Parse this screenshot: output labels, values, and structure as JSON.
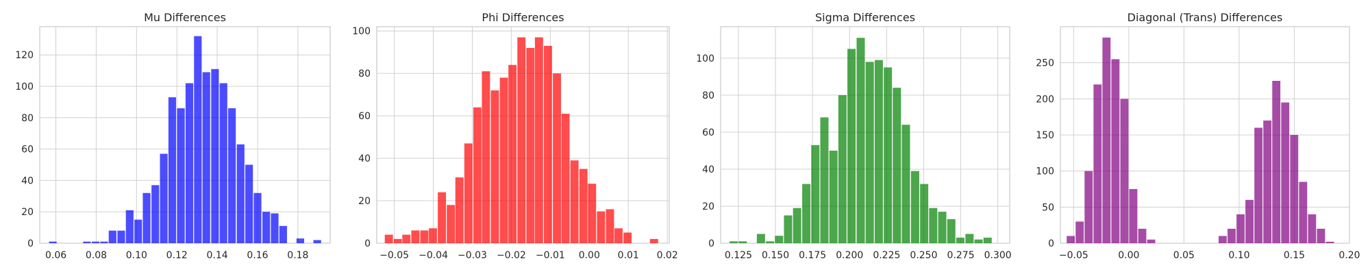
{
  "figure": {
    "background": "#ffffff",
    "grid_color": "#d0d0d0"
  },
  "chart_data": [
    {
      "type": "bar",
      "title": "Mu Differences",
      "color": "#0000ff",
      "bin_width": 0.0042,
      "x": [
        0.0585,
        0.0628,
        0.067,
        0.0712,
        0.0754,
        0.0797,
        0.0839,
        0.0881,
        0.0924,
        0.0966,
        0.1008,
        0.105,
        0.1093,
        0.1135,
        0.1177,
        0.122,
        0.1262,
        0.1304,
        0.1346,
        0.1389,
        0.1431,
        0.1473,
        0.1516,
        0.1558,
        0.16,
        0.1643,
        0.1685,
        0.1727,
        0.1769,
        0.1812,
        0.1854,
        0.1896
      ],
      "values": [
        1,
        0,
        0,
        0,
        1,
        1,
        1,
        8,
        8,
        21,
        15,
        32,
        37,
        57,
        93,
        86,
        102,
        132,
        109,
        111,
        102,
        86,
        63,
        50,
        32,
        20,
        19,
        11,
        0,
        3,
        0,
        2
      ],
      "xlim": [
        0.052,
        0.196
      ],
      "ylim": [
        0,
        138
      ],
      "xticks": [
        0.06,
        0.08,
        0.1,
        0.12,
        0.14,
        0.16,
        0.18
      ],
      "xtick_labels": [
        "0.06",
        "0.08",
        "0.10",
        "0.12",
        "0.14",
        "0.16",
        "0.18"
      ],
      "yticks": [
        0,
        20,
        40,
        60,
        80,
        100,
        120
      ],
      "ytick_labels": [
        "0",
        "20",
        "40",
        "60",
        "80",
        "100",
        "120"
      ],
      "xlabel": "",
      "ylabel": "",
      "grid": true
    },
    {
      "type": "bar",
      "title": "Phi Differences",
      "color": "#ff0000",
      "bin_width": 0.0023,
      "x": [
        -0.0514,
        -0.0491,
        -0.0469,
        -0.0446,
        -0.0423,
        -0.0401,
        -0.0378,
        -0.0355,
        -0.0333,
        -0.031,
        -0.0287,
        -0.0265,
        -0.0242,
        -0.0219,
        -0.0197,
        -0.0174,
        -0.0151,
        -0.0129,
        -0.0106,
        -0.0083,
        -0.0061,
        -0.0038,
        -0.0015,
        0.0007,
        0.003,
        0.0053,
        0.0075,
        0.0098,
        0.0121,
        0.0143,
        0.0166
      ],
      "values": [
        4,
        2,
        4,
        6,
        6,
        7,
        24,
        18,
        31,
        47,
        64,
        81,
        72,
        78,
        84,
        97,
        92,
        97,
        93,
        80,
        61,
        39,
        35,
        28,
        15,
        16,
        7,
        5,
        0,
        0,
        2
      ],
      "xlim": [
        -0.0545,
        0.0205
      ],
      "ylim": [
        0,
        102
      ],
      "xticks": [
        -0.05,
        -0.04,
        -0.03,
        -0.02,
        -0.01,
        0.0,
        0.01,
        0.02
      ],
      "xtick_labels": [
        "−0.05",
        "−0.04",
        "−0.03",
        "−0.02",
        "−0.01",
        "0.00",
        "0.01",
        "0.02"
      ],
      "yticks": [
        0,
        20,
        40,
        60,
        80,
        100
      ],
      "ytick_labels": [
        "0",
        "20",
        "40",
        "60",
        "80",
        "100"
      ],
      "xlabel": "",
      "ylabel": "",
      "grid": true
    },
    {
      "type": "bar",
      "title": "Sigma Differences",
      "color": "#008000",
      "bin_width": 0.0061,
      "x": [
        0.1218,
        0.1279,
        0.1341,
        0.1402,
        0.1463,
        0.1524,
        0.1585,
        0.1646,
        0.1708,
        0.1769,
        0.183,
        0.1891,
        0.1952,
        0.2013,
        0.2075,
        0.2136,
        0.2197,
        0.2258,
        0.2319,
        0.238,
        0.2442,
        0.2503,
        0.2564,
        0.2625,
        0.2686,
        0.2747,
        0.2809,
        0.287,
        0.2931,
        0.2992
      ],
      "values": [
        1,
        1,
        0,
        5,
        1,
        4,
        15,
        19,
        32,
        53,
        68,
        50,
        80,
        105,
        111,
        98,
        99,
        95,
        84,
        64,
        39,
        32,
        19,
        17,
        13,
        3,
        5,
        2,
        3,
        0
      ],
      "xlim": [
        0.113,
        0.308
      ],
      "ylim": [
        0,
        117
      ],
      "xticks": [
        0.125,
        0.15,
        0.175,
        0.2,
        0.225,
        0.25,
        0.275,
        0.3
      ],
      "xtick_labels": [
        "0.125",
        "0.150",
        "0.175",
        "0.200",
        "0.225",
        "0.250",
        "0.275",
        "0.300"
      ],
      "yticks": [
        0,
        20,
        40,
        60,
        80,
        100
      ],
      "ytick_labels": [
        "0",
        "20",
        "40",
        "60",
        "80",
        "100"
      ],
      "xlabel": "",
      "ylabel": "",
      "grid": true
    },
    {
      "type": "bar",
      "title": "Diagonal (Trans) Differences",
      "color": "#800080",
      "bin_width": 0.0081,
      "x": [
        -0.0526,
        -0.0445,
        -0.0364,
        -0.0283,
        -0.0202,
        -0.0121,
        -0.004,
        0.0041,
        0.0122,
        0.0203,
        0.0284,
        0.0365,
        0.0446,
        0.0527,
        0.0608,
        0.0689,
        0.077,
        0.0851,
        0.0932,
        0.1013,
        0.1094,
        0.1175,
        0.1256,
        0.1337,
        0.1418,
        0.1499,
        0.158,
        0.1661,
        0.1742,
        0.1823
      ],
      "values": [
        10,
        30,
        100,
        220,
        285,
        255,
        200,
        75,
        20,
        5,
        0,
        0,
        0,
        0,
        0,
        0,
        0,
        10,
        20,
        40,
        60,
        160,
        170,
        225,
        195,
        150,
        85,
        40,
        20,
        2
      ],
      "xlim": [
        -0.062,
        0.2
      ],
      "ylim": [
        0,
        300
      ],
      "xticks": [
        -0.05,
        0.0,
        0.05,
        0.1,
        0.15,
        0.2
      ],
      "xtick_labels": [
        "−0.05",
        "0.00",
        "0.05",
        "0.10",
        "0.15",
        "0.20"
      ],
      "yticks": [
        0,
        50,
        100,
        150,
        200,
        250
      ],
      "ytick_labels": [
        "0",
        "50",
        "100",
        "150",
        "200",
        "250"
      ],
      "xlabel": "",
      "ylabel": "",
      "grid": true
    }
  ]
}
